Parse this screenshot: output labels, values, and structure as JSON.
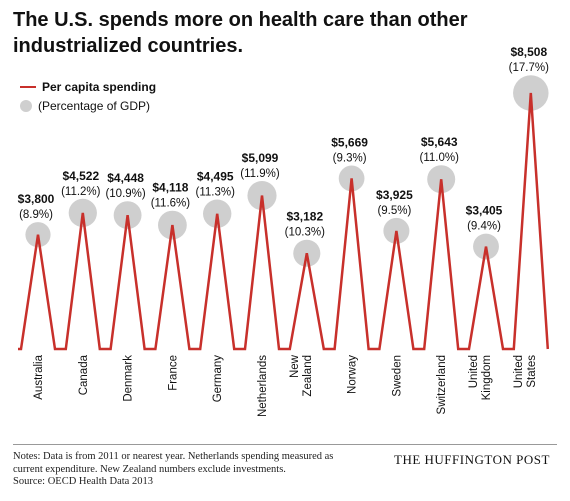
{
  "title": "The U.S. spends more on health care than other industrialized countries.",
  "legend": {
    "line_label": "Per capita spending",
    "bubble_label": "(Percentage of GDP)"
  },
  "colors": {
    "line": "#c8302b",
    "bubble": "#cfcfcf",
    "text": "#111111"
  },
  "notes": {
    "line1": "Notes: Data is from 2011 or nearest year. Netherlands spending measured as",
    "line2": "current expenditure. New Zealand numbers exclude investments.",
    "line3": "Source: OECD Health Data 2013"
  },
  "brand": "THE HUFFINGTON POST",
  "chart_data": {
    "type": "line",
    "series": [
      {
        "name": "Per capita spending",
        "values": [
          3800,
          4522,
          4448,
          4118,
          4495,
          5099,
          3182,
          5669,
          3925,
          5643,
          3405,
          8508
        ]
      },
      {
        "name": "(Percentage of GDP)",
        "values": [
          8.9,
          11.2,
          10.9,
          11.6,
          11.3,
          11.9,
          10.3,
          9.3,
          9.5,
          11.0,
          9.4,
          17.7
        ]
      }
    ],
    "categories": [
      "Australia",
      "Canada",
      "Denmark",
      "France",
      "Germany",
      "Netherlands",
      "New Zealand",
      "Norway",
      "Sweden",
      "Switzerland",
      "United Kingdom",
      "United States"
    ],
    "category_lines": [
      [
        "Australia"
      ],
      [
        "Canada"
      ],
      [
        "Denmark"
      ],
      [
        "France"
      ],
      [
        "Germany"
      ],
      [
        "Netherlands"
      ],
      [
        "New",
        "Zealand"
      ],
      [
        "Norway"
      ],
      [
        "Sweden"
      ],
      [
        "Switzerland"
      ],
      [
        "United",
        "Kingdom"
      ],
      [
        "United",
        "States"
      ]
    ],
    "value_labels": [
      "$3,800",
      "$4,522",
      "$4,448",
      "$4,118",
      "$4,495",
      "$5,099",
      "$3,182",
      "$5,669",
      "$3,925",
      "$5,643",
      "$3,405",
      "$8,508"
    ],
    "gdp_labels": [
      "(8.9%)",
      "(11.2%)",
      "(10.9%)",
      "(11.6%)",
      "(11.3%)",
      "(11.9%)",
      "(10.3%)",
      "(9.3%)",
      "(9.5%)",
      "(11.0%)",
      "(9.4%)",
      "(17.7%)"
    ],
    "ylim": [
      0,
      8508
    ],
    "grid": false,
    "legend_position": "top-left"
  }
}
